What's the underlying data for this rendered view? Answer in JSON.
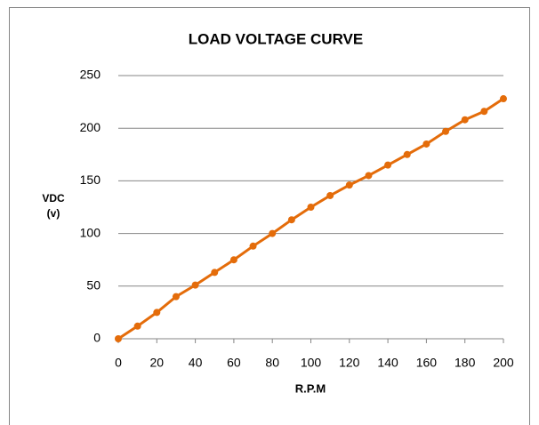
{
  "chart_data": {
    "type": "line",
    "title": "LOAD VOLTAGE CURVE",
    "xlabel": "R.P.M",
    "ylabel": [
      "VDC",
      "(v)"
    ],
    "x": [
      0,
      10,
      20,
      30,
      40,
      50,
      60,
      70,
      80,
      90,
      100,
      110,
      120,
      130,
      140,
      150,
      160,
      170,
      180,
      190,
      200
    ],
    "series": [
      {
        "name": "VDC",
        "color": "#e46c0a",
        "values": [
          0,
          12,
          25,
          40,
          51,
          63,
          75,
          88,
          100,
          113,
          125,
          136,
          146,
          155,
          165,
          175,
          185,
          197,
          208,
          216,
          228
        ]
      }
    ],
    "xlim": [
      0,
      200
    ],
    "xticks": [
      0,
      20,
      40,
      60,
      80,
      100,
      120,
      140,
      160,
      180,
      200
    ],
    "ylim": [
      0,
      250
    ],
    "yticks": [
      0,
      50,
      100,
      150,
      200,
      250
    ],
    "grid": true
  }
}
